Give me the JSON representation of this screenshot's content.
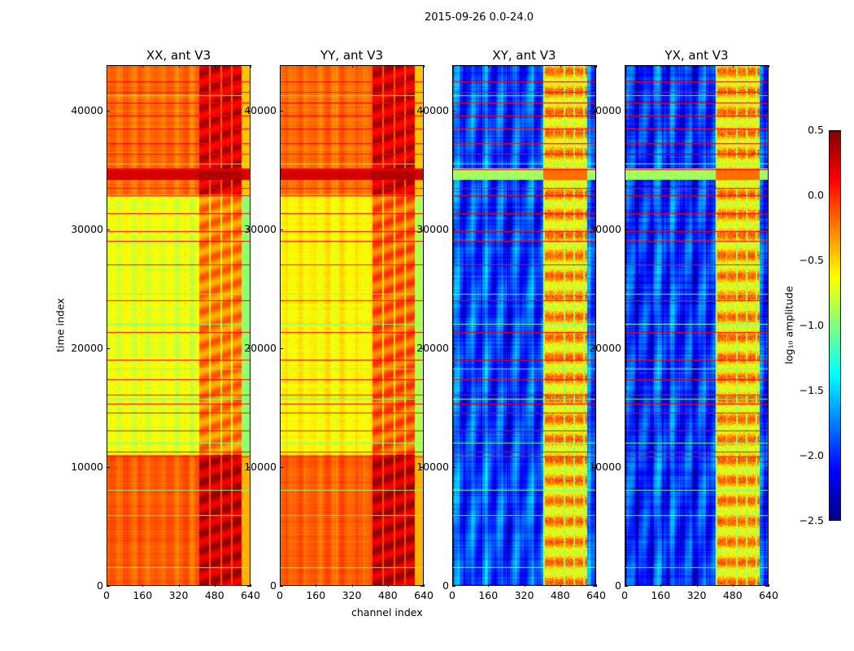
{
  "chart_data": {
    "type": "heatmap",
    "title": "2015-09-26 0.0-24.0",
    "xlabel": "channel index",
    "ylabel": "time index",
    "xlim": [
      0,
      640
    ],
    "ylim": [
      0,
      43800
    ],
    "xticks": [
      "0",
      "160",
      "320",
      "480",
      "640"
    ],
    "xtick_values": [
      0,
      160,
      320,
      480,
      640
    ],
    "yticks": [
      "0",
      "10000",
      "20000",
      "30000",
      "40000"
    ],
    "ytick_values": [
      0,
      10000,
      20000,
      30000,
      40000
    ],
    "panels": [
      {
        "title": "XX, ant V3",
        "kind": "auto",
        "base_levels": [
          {
            "from": 0,
            "to": 11000,
            "value": -0.15
          },
          {
            "from": 11000,
            "to": 33000,
            "value": -0.7
          },
          {
            "from": 33000,
            "to": 43800,
            "value": -0.2
          }
        ]
      },
      {
        "title": "YY, ant V3",
        "kind": "auto",
        "base_levels": [
          {
            "from": 0,
            "to": 11000,
            "value": -0.15
          },
          {
            "from": 11000,
            "to": 33000,
            "value": -0.6
          },
          {
            "from": 33000,
            "to": 43800,
            "value": -0.2
          }
        ]
      },
      {
        "title": "XY, ant V3",
        "kind": "cross",
        "base_levels": [
          {
            "from": 0,
            "to": 43800,
            "value": -1.95
          }
        ]
      },
      {
        "title": "YX, ant V3",
        "kind": "cross",
        "base_levels": [
          {
            "from": 0,
            "to": 43800,
            "value": -1.95
          }
        ]
      }
    ],
    "high_channel_band": [
      405,
      600
    ],
    "bright_time_band": [
      34200,
      35200
    ],
    "red_stripes": [
      42400,
      41500,
      40600,
      39500,
      38400,
      37200,
      36300,
      35000,
      33400,
      32800,
      31300,
      29800,
      29000,
      27000,
      24000,
      21300,
      19000,
      17300,
      16000,
      15300,
      14500,
      13000,
      11200,
      10800
    ],
    "green_stripes": [
      41200,
      35500,
      24500,
      22000,
      18200,
      15700,
      12000,
      8000,
      5900,
      1500
    ],
    "colorbar": {
      "label": "log₁₀ amplitude",
      "range": [
        -2.5,
        0.5
      ],
      "ticks": [
        "0.5",
        "0.0",
        "−0.5",
        "−1.0",
        "−1.5",
        "−2.0",
        "−2.5"
      ],
      "tick_values": [
        0.5,
        0.0,
        -0.5,
        -1.0,
        -1.5,
        -2.0,
        -2.5
      ],
      "colormap": "jet"
    }
  }
}
